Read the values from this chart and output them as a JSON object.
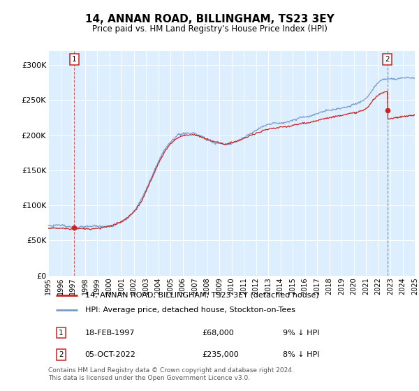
{
  "title": "14, ANNAN ROAD, BILLINGHAM, TS23 3EY",
  "subtitle": "Price paid vs. HM Land Registry's House Price Index (HPI)",
  "ylim": [
    0,
    320000
  ],
  "yticks": [
    0,
    50000,
    100000,
    150000,
    200000,
    250000,
    300000
  ],
  "ytick_labels": [
    "£0",
    "£50K",
    "£100K",
    "£150K",
    "£200K",
    "£250K",
    "£300K"
  ],
  "bg_color": "#ddeeff",
  "grid_color": "#ffffff",
  "red_line_color": "#cc2222",
  "blue_line_color": "#7799cc",
  "marker_color": "#cc2222",
  "dashed_line_color": "#cc4444",
  "transaction1": {
    "date": "18-FEB-1997",
    "price": 68000,
    "label": "1",
    "year": 1997.13
  },
  "transaction2": {
    "date": "05-OCT-2022",
    "price": 235000,
    "label": "2",
    "year": 2022.75
  },
  "legend_red_label": "14, ANNAN ROAD, BILLINGHAM, TS23 3EY (detached house)",
  "legend_blue_label": "HPI: Average price, detached house, Stockton-on-Tees",
  "footnote": "Contains HM Land Registry data © Crown copyright and database right 2024.\nThis data is licensed under the Open Government Licence v3.0.",
  "xstart": 1995,
  "xend": 2025
}
